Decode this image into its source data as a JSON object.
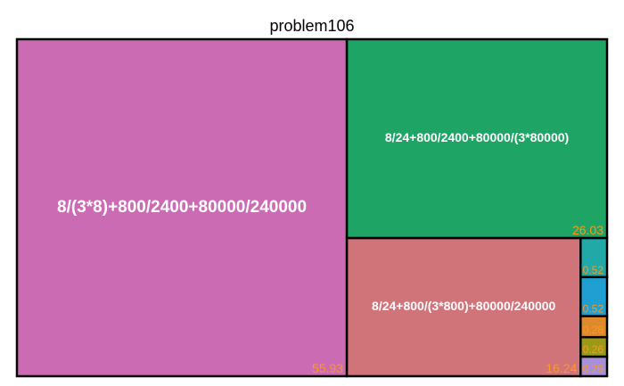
{
  "chart_data": {
    "type": "treemap",
    "title": "problem106",
    "items": [
      {
        "label": "8/(3*8)+800/2400+80000/240000",
        "value_label": "55.93",
        "value": 55.93,
        "color": "#cb6bb4"
      },
      {
        "label": "8/24+800/2400+80000/(3*80000)",
        "value_label": "26.03",
        "value": 26.03,
        "color": "#1ea464"
      },
      {
        "label": "8/24+800/(3*800)+80000/240000",
        "value_label": "16.24",
        "value": 16.24,
        "color": "#d0747a"
      },
      {
        "label": "",
        "value_label": "0.52",
        "value": 0.52,
        "color": "#21a9a7"
      },
      {
        "label": "",
        "value_label": "0.52",
        "value": 0.52,
        "color": "#1f9fd2"
      },
      {
        "label": "",
        "value_label": "0.28",
        "value": 0.28,
        "color": "#de8a2c"
      },
      {
        "label": "",
        "value_label": "0.26",
        "value": 0.26,
        "color": "#9a9a18"
      },
      {
        "label": "",
        "value_label": "0.26",
        "value": 0.26,
        "color": "#a98fd8"
      }
    ],
    "value_label_color": "#ff9a1a"
  }
}
